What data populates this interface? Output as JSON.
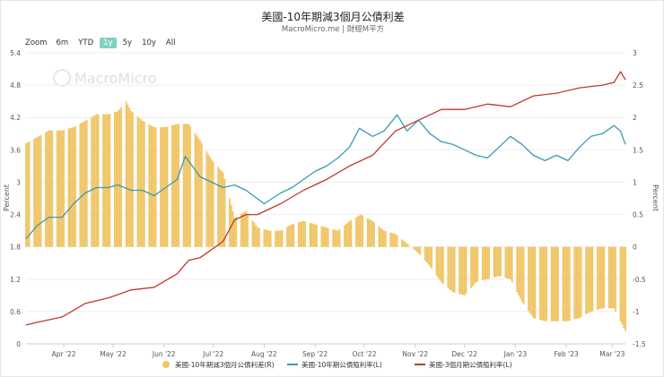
{
  "header": {
    "title": "美國-10年期減3個月公債利差",
    "subtitle": "MacroMicro.me | 財經M平方"
  },
  "zoom": {
    "label": "Zoom",
    "buttons": [
      "6m",
      "YTD",
      "1y",
      "5y",
      "10y",
      "All"
    ],
    "active": "1y"
  },
  "watermark": "MacroMicro",
  "colors": {
    "spread": "#f0c566",
    "ten_year": "#3a9bb0",
    "three_month": "#c0392b"
  },
  "chart_data": {
    "type": "line",
    "x_tick_labels": [
      "Apr '22",
      "May '22",
      "Jun '22",
      "Jul '22",
      "Aug '22",
      "Sep '22",
      "Oct '22",
      "Nov '22",
      "Dec '22",
      "Jan '23",
      "Feb '23",
      "Mar '23"
    ],
    "x_range": [
      "2022-03-09",
      "2023-03-09"
    ],
    "left_axis": {
      "label": "Percent",
      "ticks": [
        "0",
        "0.6",
        "1.2",
        "1.8",
        "2.4",
        "3",
        "3.6",
        "4.2",
        "4.8",
        "5.4"
      ],
      "ylim": [
        0,
        5.4
      ]
    },
    "right_axis": {
      "label": "Percent",
      "ticks": [
        "-1.5",
        "-1",
        "-0.5",
        "0",
        "0.5",
        "1",
        "1.5",
        "2",
        "2.5",
        "3"
      ],
      "ylim": [
        -1.5,
        3
      ]
    },
    "legend_position": "bottom",
    "series": [
      {
        "name": "美國-10年期減3個月公債利差(R)",
        "type": "bar",
        "axis": "right",
        "points": [
          [
            "2022-03-09",
            1.6
          ],
          [
            "2022-03-16",
            1.7
          ],
          [
            "2022-03-23",
            1.8
          ],
          [
            "2022-03-31",
            1.8
          ],
          [
            "2022-04-07",
            1.85
          ],
          [
            "2022-04-14",
            1.95
          ],
          [
            "2022-04-21",
            2.05
          ],
          [
            "2022-04-28",
            2.05
          ],
          [
            "2022-05-04",
            2.1
          ],
          [
            "2022-05-09",
            2.25
          ],
          [
            "2022-05-12",
            2.1
          ],
          [
            "2022-05-19",
            1.95
          ],
          [
            "2022-05-26",
            1.85
          ],
          [
            "2022-06-02",
            1.85
          ],
          [
            "2022-06-09",
            1.9
          ],
          [
            "2022-06-16",
            1.9
          ],
          [
            "2022-06-23",
            1.65
          ],
          [
            "2022-06-30",
            1.35
          ],
          [
            "2022-07-07",
            1.15
          ],
          [
            "2022-07-14",
            0.45
          ],
          [
            "2022-07-21",
            0.55
          ],
          [
            "2022-07-28",
            0.3
          ],
          [
            "2022-08-04",
            0.25
          ],
          [
            "2022-08-11",
            0.25
          ],
          [
            "2022-08-18",
            0.35
          ],
          [
            "2022-08-25",
            0.4
          ],
          [
            "2022-09-01",
            0.35
          ],
          [
            "2022-09-08",
            0.3
          ],
          [
            "2022-09-15",
            0.25
          ],
          [
            "2022-09-22",
            0.4
          ],
          [
            "2022-09-29",
            0.5
          ],
          [
            "2022-10-06",
            0.4
          ],
          [
            "2022-10-13",
            0.25
          ],
          [
            "2022-10-20",
            0.2
          ],
          [
            "2022-10-27",
            0.05
          ],
          [
            "2022-11-03",
            -0.1
          ],
          [
            "2022-11-10",
            -0.3
          ],
          [
            "2022-11-17",
            -0.55
          ],
          [
            "2022-11-24",
            -0.7
          ],
          [
            "2022-12-01",
            -0.75
          ],
          [
            "2022-12-08",
            -0.55
          ],
          [
            "2022-12-15",
            -0.5
          ],
          [
            "2022-12-22",
            -0.45
          ],
          [
            "2022-12-29",
            -0.5
          ],
          [
            "2023-01-05",
            -0.85
          ],
          [
            "2023-01-12",
            -1.1
          ],
          [
            "2023-01-19",
            -1.15
          ],
          [
            "2023-01-26",
            -1.15
          ],
          [
            "2023-02-02",
            -1.15
          ],
          [
            "2023-02-09",
            -1.1
          ],
          [
            "2023-02-16",
            -1.0
          ],
          [
            "2023-02-23",
            -0.95
          ],
          [
            "2023-03-02",
            -0.95
          ],
          [
            "2023-03-09",
            -1.3
          ]
        ]
      },
      {
        "name": "美國-10年期公債殖利率(L)",
        "type": "line",
        "axis": "left",
        "points": [
          [
            "2022-03-09",
            1.95
          ],
          [
            "2022-03-16",
            2.2
          ],
          [
            "2022-03-23",
            2.35
          ],
          [
            "2022-03-31",
            2.35
          ],
          [
            "2022-04-07",
            2.6
          ],
          [
            "2022-04-14",
            2.8
          ],
          [
            "2022-04-21",
            2.9
          ],
          [
            "2022-04-28",
            2.9
          ],
          [
            "2022-05-04",
            2.95
          ],
          [
            "2022-05-12",
            2.85
          ],
          [
            "2022-05-19",
            2.85
          ],
          [
            "2022-05-26",
            2.75
          ],
          [
            "2022-06-02",
            2.9
          ],
          [
            "2022-06-09",
            3.05
          ],
          [
            "2022-06-14",
            3.48
          ],
          [
            "2022-06-23",
            3.1
          ],
          [
            "2022-06-30",
            3.0
          ],
          [
            "2022-07-07",
            2.9
          ],
          [
            "2022-07-14",
            2.95
          ],
          [
            "2022-07-21",
            2.85
          ],
          [
            "2022-08-01",
            2.6
          ],
          [
            "2022-08-11",
            2.8
          ],
          [
            "2022-08-18",
            2.9
          ],
          [
            "2022-08-25",
            3.05
          ],
          [
            "2022-09-01",
            3.2
          ],
          [
            "2022-09-08",
            3.3
          ],
          [
            "2022-09-15",
            3.45
          ],
          [
            "2022-09-22",
            3.65
          ],
          [
            "2022-09-28",
            4.0
          ],
          [
            "2022-10-06",
            3.85
          ],
          [
            "2022-10-13",
            3.95
          ],
          [
            "2022-10-21",
            4.25
          ],
          [
            "2022-10-27",
            3.95
          ],
          [
            "2022-11-03",
            4.15
          ],
          [
            "2022-11-10",
            3.9
          ],
          [
            "2022-11-17",
            3.75
          ],
          [
            "2022-11-24",
            3.7
          ],
          [
            "2022-12-01",
            3.6
          ],
          [
            "2022-12-08",
            3.5
          ],
          [
            "2022-12-15",
            3.45
          ],
          [
            "2022-12-22",
            3.65
          ],
          [
            "2022-12-29",
            3.85
          ],
          [
            "2023-01-05",
            3.7
          ],
          [
            "2023-01-12",
            3.5
          ],
          [
            "2023-01-19",
            3.4
          ],
          [
            "2023-01-26",
            3.5
          ],
          [
            "2023-02-02",
            3.4
          ],
          [
            "2023-02-09",
            3.65
          ],
          [
            "2023-02-16",
            3.85
          ],
          [
            "2023-02-23",
            3.9
          ],
          [
            "2023-03-02",
            4.05
          ],
          [
            "2023-03-06",
            3.95
          ],
          [
            "2023-03-09",
            3.7
          ]
        ]
      },
      {
        "name": "美國-3個月期公債殖利率(L)",
        "type": "line",
        "axis": "left",
        "points": [
          [
            "2022-03-09",
            0.35
          ],
          [
            "2022-03-16",
            0.4
          ],
          [
            "2022-03-31",
            0.5
          ],
          [
            "2022-04-14",
            0.75
          ],
          [
            "2022-04-28",
            0.85
          ],
          [
            "2022-05-12",
            1.0
          ],
          [
            "2022-05-26",
            1.05
          ],
          [
            "2022-06-09",
            1.3
          ],
          [
            "2022-06-16",
            1.55
          ],
          [
            "2022-06-23",
            1.6
          ],
          [
            "2022-06-30",
            1.75
          ],
          [
            "2022-07-07",
            1.9
          ],
          [
            "2022-07-14",
            2.3
          ],
          [
            "2022-07-21",
            2.4
          ],
          [
            "2022-07-28",
            2.4
          ],
          [
            "2022-08-11",
            2.6
          ],
          [
            "2022-08-25",
            2.85
          ],
          [
            "2022-09-08",
            3.05
          ],
          [
            "2022-09-22",
            3.3
          ],
          [
            "2022-10-06",
            3.5
          ],
          [
            "2022-10-20",
            3.95
          ],
          [
            "2022-11-03",
            4.15
          ],
          [
            "2022-11-17",
            4.35
          ],
          [
            "2022-12-01",
            4.35
          ],
          [
            "2022-12-15",
            4.45
          ],
          [
            "2022-12-29",
            4.4
          ],
          [
            "2023-01-12",
            4.6
          ],
          [
            "2023-01-26",
            4.65
          ],
          [
            "2023-02-09",
            4.75
          ],
          [
            "2023-02-23",
            4.8
          ],
          [
            "2023-03-02",
            4.85
          ],
          [
            "2023-03-06",
            5.05
          ],
          [
            "2023-03-09",
            4.9
          ]
        ]
      }
    ]
  }
}
